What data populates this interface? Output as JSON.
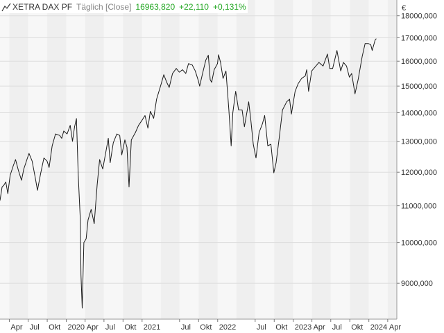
{
  "header": {
    "symbol": "XETRA DAX PF",
    "mode": "Täglich [Close]",
    "last": "16963,820",
    "change": "+22,110",
    "change_pct": "+0,131%",
    "icon": "line-chart-icon",
    "positive_color": "#23a723"
  },
  "chart_data": {
    "type": "line",
    "title": "XETRA DAX PF",
    "currency": "€",
    "y_scale": "log",
    "ylim": [
      8200,
      18750
    ],
    "y_ticks": [
      {
        "value": 9000,
        "label": "9000,000"
      },
      {
        "value": 10000,
        "label": "10000,000"
      },
      {
        "value": 11000,
        "label": "11000,000"
      },
      {
        "value": 12000,
        "label": "12000,000"
      },
      {
        "value": 13000,
        "label": "13000,000"
      },
      {
        "value": 14000,
        "label": "14000,000"
      },
      {
        "value": 15000,
        "label": "15000,000"
      },
      {
        "value": 16000,
        "label": "16000,000"
      },
      {
        "value": 17000,
        "label": "17000,000"
      },
      {
        "value": 18000,
        "label": "18000,000"
      }
    ],
    "xlim": [
      "2019-02-15",
      "2024-05-15"
    ],
    "x_ticks": [
      {
        "date": "2019-04-01",
        "label": "Apr"
      },
      {
        "date": "2019-07-01",
        "label": "Jul"
      },
      {
        "date": "2019-10-01",
        "label": "Okt"
      },
      {
        "date": "2020-01-01",
        "label": "2020"
      },
      {
        "date": "2020-04-01",
        "label": "Apr"
      },
      {
        "date": "2020-07-01",
        "label": "Jul"
      },
      {
        "date": "2020-10-01",
        "label": "Okt"
      },
      {
        "date": "2021-01-01",
        "label": "2021"
      },
      {
        "date": "2021-07-01",
        "label": "Jul"
      },
      {
        "date": "2021-10-01",
        "label": "Okt"
      },
      {
        "date": "2022-01-01",
        "label": "2022"
      },
      {
        "date": "2022-07-01",
        "label": "Jul"
      },
      {
        "date": "2022-10-01",
        "label": "Okt"
      },
      {
        "date": "2023-01-01",
        "label": "2023"
      },
      {
        "date": "2023-04-01",
        "label": "Apr"
      },
      {
        "date": "2023-07-01",
        "label": "Jul"
      },
      {
        "date": "2023-10-01",
        "label": "Okt"
      },
      {
        "date": "2024-01-01",
        "label": "2024"
      },
      {
        "date": "2024-04-01",
        "label": "Apr"
      }
    ],
    "grid": true,
    "background_bands": "alternating quarters",
    "series": [
      {
        "line_color": "#1a1a1a",
        "points": [
          [
            "2019-02-15",
            11150
          ],
          [
            "2019-02-25",
            11550
          ],
          [
            "2019-03-05",
            11600
          ],
          [
            "2019-03-15",
            11700
          ],
          [
            "2019-03-25",
            11350
          ],
          [
            "2019-04-05",
            11900
          ],
          [
            "2019-04-20",
            12200
          ],
          [
            "2019-05-01",
            12400
          ],
          [
            "2019-05-15",
            12050
          ],
          [
            "2019-05-30",
            11750
          ],
          [
            "2019-06-10",
            12100
          ],
          [
            "2019-06-25",
            12400
          ],
          [
            "2019-07-05",
            12600
          ],
          [
            "2019-07-20",
            12350
          ],
          [
            "2019-08-05",
            11800
          ],
          [
            "2019-08-15",
            11450
          ],
          [
            "2019-08-30",
            11950
          ],
          [
            "2019-09-15",
            12450
          ],
          [
            "2019-09-30",
            12350
          ],
          [
            "2019-10-10",
            12150
          ],
          [
            "2019-10-25",
            12850
          ],
          [
            "2019-11-10",
            13250
          ],
          [
            "2019-11-30",
            13200
          ],
          [
            "2019-12-10",
            13100
          ],
          [
            "2019-12-20",
            13350
          ],
          [
            "2020-01-05",
            13250
          ],
          [
            "2020-01-20",
            13550
          ],
          [
            "2020-01-31",
            13000
          ],
          [
            "2020-02-10",
            13500
          ],
          [
            "2020-02-19",
            13790
          ],
          [
            "2020-02-28",
            11900
          ],
          [
            "2020-03-09",
            10600
          ],
          [
            "2020-03-12",
            9200
          ],
          [
            "2020-03-18",
            8440
          ],
          [
            "2020-03-26",
            10000
          ],
          [
            "2020-04-06",
            10100
          ],
          [
            "2020-04-15",
            10600
          ],
          [
            "2020-04-30",
            10900
          ],
          [
            "2020-05-15",
            10500
          ],
          [
            "2020-05-29",
            11600
          ],
          [
            "2020-06-10",
            12400
          ],
          [
            "2020-06-25",
            12100
          ],
          [
            "2020-07-10",
            12650
          ],
          [
            "2020-07-22",
            13100
          ],
          [
            "2020-07-31",
            12300
          ],
          [
            "2020-08-15",
            12950
          ],
          [
            "2020-09-01",
            13250
          ],
          [
            "2020-09-15",
            13200
          ],
          [
            "2020-09-25",
            12550
          ],
          [
            "2020-10-10",
            13050
          ],
          [
            "2020-10-20",
            12800
          ],
          [
            "2020-10-30",
            11550
          ],
          [
            "2020-11-10",
            13050
          ],
          [
            "2020-11-30",
            13300
          ],
          [
            "2020-12-15",
            13550
          ],
          [
            "2020-12-31",
            13720
          ],
          [
            "2021-01-15",
            13900
          ],
          [
            "2021-01-29",
            13450
          ],
          [
            "2021-02-10",
            14050
          ],
          [
            "2021-02-26",
            13800
          ],
          [
            "2021-03-12",
            14500
          ],
          [
            "2021-03-31",
            15000
          ],
          [
            "2021-04-16",
            15450
          ],
          [
            "2021-04-30",
            15150
          ],
          [
            "2021-05-12",
            14950
          ],
          [
            "2021-05-28",
            15500
          ],
          [
            "2021-06-15",
            15700
          ],
          [
            "2021-06-30",
            15550
          ],
          [
            "2021-07-15",
            15650
          ],
          [
            "2021-07-31",
            15500
          ],
          [
            "2021-08-13",
            15900
          ],
          [
            "2021-08-31",
            15850
          ],
          [
            "2021-09-15",
            15600
          ],
          [
            "2021-09-30",
            15200
          ],
          [
            "2021-10-06",
            15000
          ],
          [
            "2021-10-20",
            15500
          ],
          [
            "2021-11-05",
            16050
          ],
          [
            "2021-11-17",
            16250
          ],
          [
            "2021-11-26",
            15250
          ],
          [
            "2021-12-03",
            15150
          ],
          [
            "2021-12-15",
            15650
          ],
          [
            "2021-12-31",
            15900
          ],
          [
            "2022-01-05",
            16270
          ],
          [
            "2022-01-15",
            15950
          ],
          [
            "2022-01-27",
            15300
          ],
          [
            "2022-02-10",
            15600
          ],
          [
            "2022-02-24",
            14100
          ],
          [
            "2022-03-07",
            12850
          ],
          [
            "2022-03-15",
            14000
          ],
          [
            "2022-03-29",
            14800
          ],
          [
            "2022-04-12",
            14100
          ],
          [
            "2022-04-29",
            14100
          ],
          [
            "2022-05-10",
            13500
          ],
          [
            "2022-05-31",
            14400
          ],
          [
            "2022-06-10",
            13750
          ],
          [
            "2022-06-22",
            12900
          ],
          [
            "2022-07-05",
            12450
          ],
          [
            "2022-07-20",
            13300
          ],
          [
            "2022-08-05",
            13600
          ],
          [
            "2022-08-16",
            13900
          ],
          [
            "2022-08-31",
            12850
          ],
          [
            "2022-09-15",
            12900
          ],
          [
            "2022-09-29",
            11980
          ],
          [
            "2022-10-10",
            12300
          ],
          [
            "2022-10-25",
            13100
          ],
          [
            "2022-11-10",
            14100
          ],
          [
            "2022-11-30",
            14400
          ],
          [
            "2022-12-14",
            14500
          ],
          [
            "2022-12-23",
            13950
          ],
          [
            "2023-01-10",
            14800
          ],
          [
            "2023-01-25",
            15100
          ],
          [
            "2023-02-10",
            15300
          ],
          [
            "2023-02-28",
            15400
          ],
          [
            "2023-03-07",
            15650
          ],
          [
            "2023-03-16",
            14800
          ],
          [
            "2023-03-31",
            15600
          ],
          [
            "2023-04-20",
            15800
          ],
          [
            "2023-05-05",
            15950
          ],
          [
            "2023-05-25",
            15800
          ],
          [
            "2023-06-15",
            16300
          ],
          [
            "2023-06-26",
            15700
          ],
          [
            "2023-07-10",
            15700
          ],
          [
            "2023-07-31",
            16450
          ],
          [
            "2023-08-18",
            15600
          ],
          [
            "2023-08-31",
            15950
          ],
          [
            "2023-09-15",
            15800
          ],
          [
            "2023-09-29",
            15350
          ],
          [
            "2023-10-10",
            15500
          ],
          [
            "2023-10-26",
            14700
          ],
          [
            "2023-11-10",
            15250
          ],
          [
            "2023-11-30",
            16200
          ],
          [
            "2023-12-14",
            16750
          ],
          [
            "2023-12-29",
            16750
          ],
          [
            "2024-01-10",
            16700
          ],
          [
            "2024-01-17",
            16450
          ],
          [
            "2024-01-31",
            16900
          ],
          [
            "2024-02-06",
            16963.82
          ]
        ]
      }
    ]
  }
}
